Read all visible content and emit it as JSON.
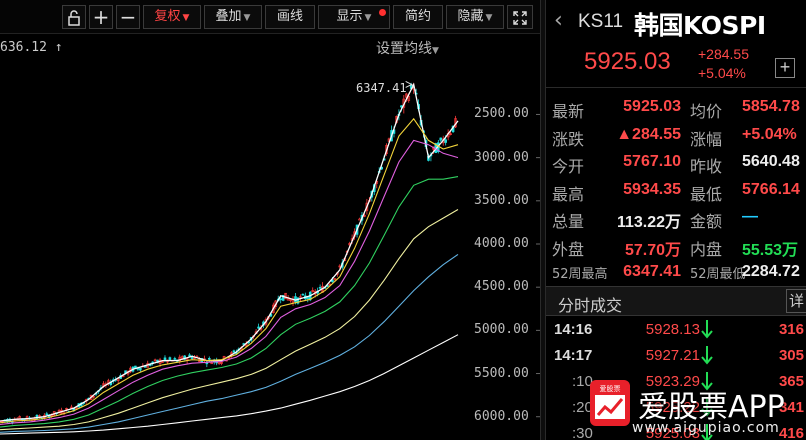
{
  "toolbar": {
    "buttons": [
      {
        "label": "复权",
        "dropdown": true,
        "active": true
      },
      {
        "label": "叠加",
        "dropdown": true
      },
      {
        "label": "画线",
        "dropdown": false
      },
      {
        "label": "显示",
        "dropdown": true,
        "dot": true
      },
      {
        "label": "简约",
        "dropdown": false
      },
      {
        "label": "隐藏",
        "dropdown": true
      }
    ],
    "icons": [
      "lock-icon",
      "zoom-in-icon",
      "zoom-out-icon",
      "fullscreen-icon"
    ]
  },
  "chart": {
    "top_price_label": "636.12 ↑",
    "ma_settings_label": "设置均线",
    "peak_label": "6347.41",
    "y_ticks": [
      "6000.00",
      "5500.00",
      "5000.00",
      "4500.00",
      "4000.00",
      "3500.00",
      "3000.00",
      "2500.00"
    ]
  },
  "chart_data": {
    "type": "line",
    "title": "",
    "xlabel": "",
    "ylabel": "",
    "ylim": [
      2300,
      6700
    ],
    "y_ticks": [
      2500,
      3000,
      3500,
      4000,
      4500,
      5000,
      5500,
      6000
    ],
    "grid": false,
    "peak": 6347.41,
    "series": [
      {
        "color": "#ffffff",
        "values": [
          2450,
          2470,
          2480,
          2500,
          2550,
          2600,
          2700,
          2850,
          2950,
          3050,
          3100,
          3150,
          3150,
          3200,
          3150,
          3150,
          3250,
          3400,
          3600,
          3900,
          3850,
          3900,
          4000,
          4200,
          4600,
          5000,
          5500,
          6000,
          6347,
          5500,
          5700,
          5925
        ]
      },
      {
        "color": "#f2d43a",
        "values": [
          2430,
          2450,
          2460,
          2480,
          2520,
          2570,
          2650,
          2780,
          2880,
          2980,
          3050,
          3100,
          3130,
          3160,
          3150,
          3160,
          3220,
          3350,
          3520,
          3780,
          3820,
          3860,
          3960,
          4120,
          4450,
          4850,
          5300,
          5750,
          5950,
          5700,
          5600,
          5650
        ]
      },
      {
        "color": "#e060e0",
        "values": [
          2410,
          2430,
          2440,
          2460,
          2490,
          2530,
          2600,
          2700,
          2800,
          2900,
          2980,
          3050,
          3090,
          3120,
          3130,
          3140,
          3190,
          3290,
          3430,
          3650,
          3750,
          3800,
          3880,
          4020,
          4300,
          4650,
          5050,
          5450,
          5700,
          5650,
          5550,
          5500
        ]
      },
      {
        "color": "#30d060",
        "values": [
          2380,
          2400,
          2410,
          2420,
          2440,
          2470,
          2520,
          2600,
          2680,
          2770,
          2850,
          2920,
          2970,
          3010,
          3040,
          3070,
          3110,
          3180,
          3290,
          3450,
          3570,
          3640,
          3720,
          3830,
          4020,
          4280,
          4600,
          4930,
          5180,
          5250,
          5250,
          5280
        ]
      },
      {
        "color": "#f0f0a0",
        "values": [
          2350,
          2360,
          2370,
          2380,
          2390,
          2410,
          2440,
          2490,
          2540,
          2600,
          2660,
          2720,
          2770,
          2820,
          2860,
          2900,
          2940,
          2990,
          3060,
          3160,
          3260,
          3340,
          3420,
          3520,
          3660,
          3850,
          4080,
          4330,
          4560,
          4700,
          4800,
          4900
        ]
      },
      {
        "color": "#60b0e0",
        "values": [
          2320,
          2330,
          2335,
          2340,
          2350,
          2360,
          2380,
          2410,
          2440,
          2480,
          2520,
          2560,
          2600,
          2640,
          2680,
          2710,
          2750,
          2790,
          2840,
          2910,
          2990,
          3060,
          3130,
          3210,
          3310,
          3440,
          3600,
          3780,
          3960,
          4120,
          4260,
          4380
        ]
      },
      {
        "color": "#ffffff",
        "values": [
          2300,
          2305,
          2310,
          2315,
          2320,
          2325,
          2335,
          2345,
          2360,
          2375,
          2390,
          2410,
          2430,
          2450,
          2470,
          2490,
          2510,
          2535,
          2565,
          2600,
          2645,
          2690,
          2740,
          2790,
          2850,
          2920,
          3000,
          3090,
          3180,
          3270,
          3360,
          3450
        ]
      }
    ]
  },
  "panel": {
    "code": "KS11",
    "name": "韩国KOSPI",
    "price": "5925.03",
    "change": "+284.55",
    "change_pct": "+5.04%",
    "quote_rows": [
      {
        "l1": "最新",
        "v1": "5925.03",
        "c1": "red",
        "l2": "均价",
        "v2": "5854.78",
        "c2": "red"
      },
      {
        "l1": "涨跌",
        "v1": "▲284.55",
        "c1": "red",
        "l2": "涨幅",
        "v2": "+5.04%",
        "c2": "red"
      },
      {
        "l1": "今开",
        "v1": "5767.10",
        "c1": "red",
        "l2": "昨收",
        "v2": "5640.48",
        "c2": "white"
      },
      {
        "l1": "最高",
        "v1": "5934.35",
        "c1": "red",
        "l2": "最低",
        "v2": "5766.14",
        "c2": "red"
      },
      {
        "l1": "总量",
        "v1": "113.22万",
        "c1": "white",
        "l2": "金额",
        "v2": "—",
        "c2": "cyan"
      },
      {
        "l1": "外盘",
        "v1": "57.70万",
        "c1": "red",
        "l2": "内盘",
        "v2": "55.53万",
        "c2": "green"
      },
      {
        "l1": "52周最高",
        "v1": "6347.41",
        "c1": "red",
        "l2": "52周最低",
        "v2": "2284.72",
        "c2": "white",
        "small": true
      }
    ],
    "fs_title": "分时成交",
    "fs_detail": "详",
    "fs_rows": [
      {
        "time": "14:16",
        "price": "5928.13",
        "vol": "316",
        "main": true
      },
      {
        "time": "14:17",
        "price": "5927.21",
        "vol": "305",
        "main": true
      },
      {
        "time": ":10",
        "price": "5923.29",
        "vol": "365",
        "main": false
      },
      {
        "time": ":20",
        "price": "5925.22",
        "vol": "341",
        "main": false
      },
      {
        "time": ":30",
        "price": "5925.03",
        "vol": "416",
        "main": false
      }
    ]
  },
  "watermark": {
    "brand": "爱股票APP",
    "url": "www.aigupiao.com",
    "logo_text": "爱股票"
  }
}
